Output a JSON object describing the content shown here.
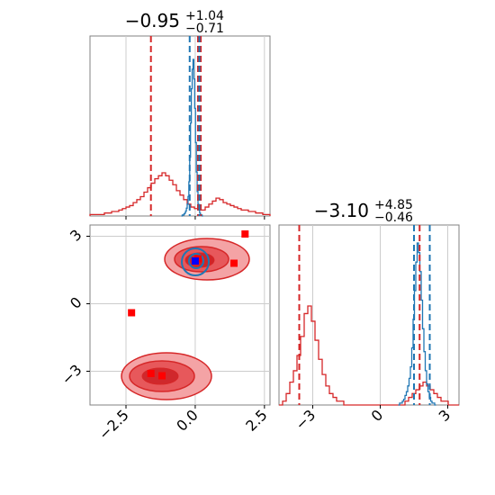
{
  "chart_data": [
    {
      "type": "histogram",
      "panel": "marginal-x",
      "title": {
        "value": "−0.95",
        "upper": "+1.04",
        "lower": "−0.71"
      },
      "xlim": [
        -3.8,
        2.7
      ],
      "grid": true,
      "colors": {
        "red": "#d62728",
        "blue": "#1f77b4",
        "redFill": "#f08a8c",
        "redFillDark": "#d6282d"
      },
      "series": [
        {
          "color": "red",
          "bins_start": -3.8,
          "bin_width": 0.13,
          "counts": [
            1,
            1,
            1,
            1,
            2,
            2,
            3,
            3,
            4,
            5,
            6,
            7,
            9,
            11,
            13,
            16,
            19,
            22,
            25,
            27,
            29,
            27,
            24,
            21,
            17,
            14,
            11,
            8,
            6,
            5,
            4,
            4,
            6,
            8,
            10,
            12,
            11,
            9,
            8,
            7,
            6,
            5,
            4,
            4,
            3,
            3,
            2,
            2,
            1,
            1
          ]
        },
        {
          "color": "blue",
          "bins_start": -0.5,
          "bin_width": 0.03,
          "counts": [
            0,
            1,
            1,
            2,
            3,
            5,
            8,
            12,
            20,
            35,
            60,
            95,
            130,
            150,
            160,
            140,
            110,
            75,
            45,
            25,
            12,
            6,
            3,
            1,
            1,
            0
          ]
        }
      ],
      "quantile_lines": [
        {
          "color": "red",
          "x": -1.6
        },
        {
          "color": "red",
          "x": 0.1
        },
        {
          "color": "red",
          "x": 0.2
        },
        {
          "color": "blue",
          "x": -0.2
        },
        {
          "color": "blue",
          "x": 0.15
        }
      ]
    },
    {
      "type": "contour",
      "panel": "joint",
      "xlim": [
        -3.8,
        2.7
      ],
      "ylim": [
        -4.5,
        3.5
      ],
      "xticks": [
        "−2.5",
        "0.0",
        "2.5"
      ],
      "yticks": [
        "3",
        "0",
        "−3"
      ],
      "grid": true,
      "points": [
        {
          "color": "red",
          "x": 1.8,
          "y": 3.1
        },
        {
          "color": "red",
          "x": -2.3,
          "y": -0.4
        },
        {
          "color": "red",
          "x": 1.4,
          "y": 1.8
        },
        {
          "color": "red",
          "x": 0.1,
          "y": 2.0
        },
        {
          "color": "red",
          "x": -1.6,
          "y": -3.1
        },
        {
          "color": "red",
          "x": -1.2,
          "y": -3.2
        },
        {
          "color": "blue",
          "x": 0.0,
          "y": 1.9
        }
      ]
    },
    {
      "type": "histogram",
      "panel": "marginal-y",
      "title": {
        "value": "−3.10",
        "upper": "+4.85",
        "lower": "−0.46"
      },
      "xlim": [
        -4.5,
        3.5
      ],
      "xticks": [
        "−3",
        "0",
        "3"
      ],
      "grid": true,
      "series": [
        {
          "color": "red",
          "bins_start": -4.5,
          "bin_width": 0.16,
          "counts": [
            0,
            1,
            3,
            6,
            9,
            13,
            18,
            24,
            26,
            22,
            17,
            12,
            8,
            5,
            3,
            2,
            1,
            1,
            0,
            0,
            0,
            0,
            0,
            0,
            0,
            0,
            0,
            0,
            0,
            0,
            0,
            0,
            0,
            0,
            0,
            1,
            2,
            3,
            4,
            5,
            6,
            5,
            4,
            3,
            2,
            1,
            1,
            0,
            0,
            0
          ]
        },
        {
          "color": "blue",
          "bins_start": 0.8,
          "bin_width": 0.06,
          "counts": [
            0,
            1,
            1,
            2,
            3,
            5,
            7,
            10,
            14,
            20,
            30,
            45,
            60,
            75,
            85,
            80,
            70,
            55,
            40,
            28,
            18,
            11,
            7,
            4,
            2,
            1,
            1,
            0
          ]
        }
      ],
      "quantile_lines": [
        {
          "color": "red",
          "x": -3.6
        },
        {
          "color": "red",
          "x": 1.75
        },
        {
          "color": "blue",
          "x": 1.5
        },
        {
          "color": "blue",
          "x": 2.2
        }
      ]
    }
  ]
}
